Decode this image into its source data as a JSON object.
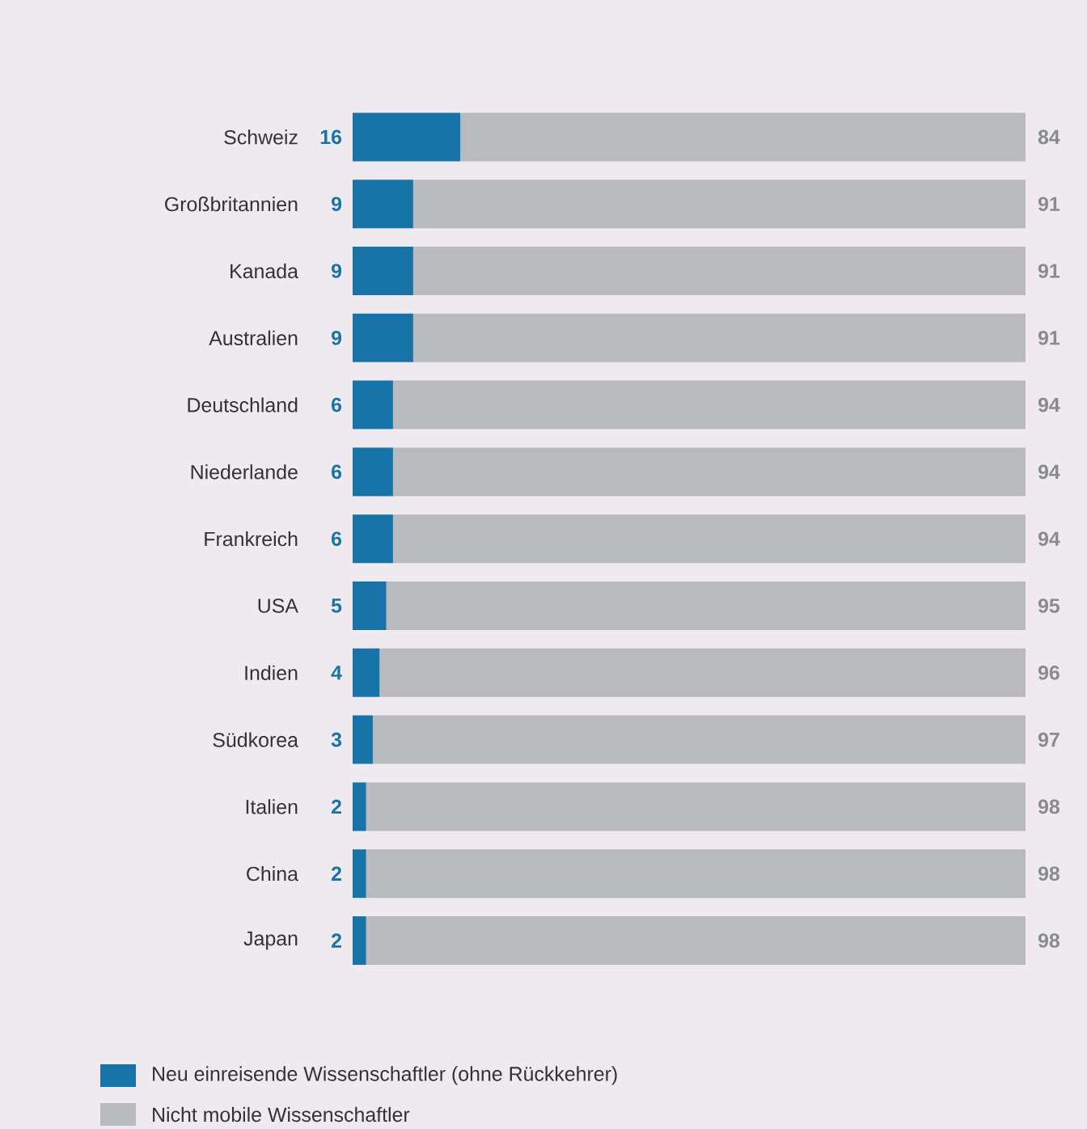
{
  "chart_data": {
    "type": "bar",
    "orientation": "horizontal",
    "stacked": true,
    "data_labels": true,
    "legend": "bottom",
    "xlim": [
      0,
      100
    ],
    "categories": [
      "Schweiz",
      "Großbritannien",
      "Kanada",
      "Australien",
      "Deutschland",
      "Niederlande",
      "Frankreich",
      "USA",
      "Indien",
      "Südkorea",
      "Italien",
      "China",
      "Japan"
    ],
    "series": [
      {
        "name": "Neu einreisende Wissenschaftler (ohne Rückkehrer)",
        "color": "#1874a8",
        "values": [
          16,
          9,
          9,
          9,
          6,
          6,
          6,
          5,
          4,
          3,
          2,
          2,
          2
        ]
      },
      {
        "name": "Nicht mobile Wissenschaftler",
        "color": "#b9babd",
        "values": [
          84,
          91,
          91,
          91,
          94,
          94,
          94,
          95,
          96,
          97,
          98,
          98,
          98
        ]
      }
    ]
  }
}
